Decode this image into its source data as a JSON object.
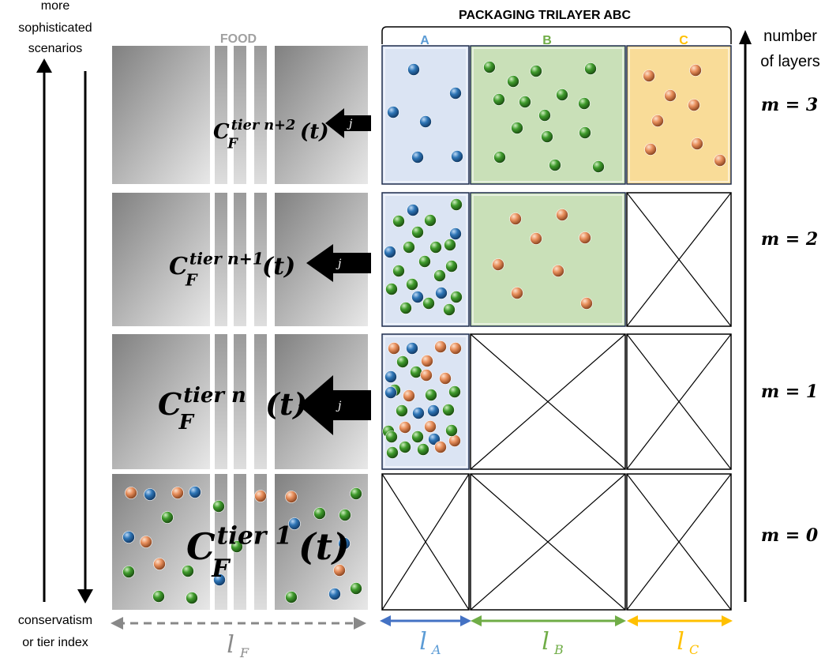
{
  "header": {
    "title": "PACKAGING TRILAYER ABC",
    "food_label": "FOOD",
    "layers": [
      {
        "label": "A",
        "color": "#5b9bd5"
      },
      {
        "label": "B",
        "color": "#70ad47"
      },
      {
        "label": "C",
        "color": "#ffc000"
      }
    ]
  },
  "left_axis": {
    "top_label": [
      "more",
      "sophisticated",
      "scenarios"
    ],
    "bottom_label": [
      "conservatism",
      "or tier index"
    ]
  },
  "right_axis": {
    "label": [
      "number",
      "of layers"
    ]
  },
  "rows": [
    {
      "m": "m = 3",
      "tier": "tier n+2",
      "flux": "j"
    },
    {
      "m": "m = 2",
      "tier": "tier n+1",
      "flux": "j"
    },
    {
      "m": "m = 1",
      "tier": "tier n",
      "flux": "j"
    },
    {
      "m": "m = 0",
      "tier": "tier 1",
      "flux": ""
    }
  ],
  "conc_symbol": {
    "base": "C",
    "sub": "F",
    "arg": "(t)"
  },
  "lengths": {
    "food": "l",
    "food_sub": "F",
    "a": "l",
    "a_sub": "A",
    "b": "l",
    "b_sub": "B",
    "c": "l",
    "c_sub": "C"
  },
  "colors": {
    "layer_a_fill": "#dbe4f3",
    "layer_b_fill": "#c9e0b8",
    "layer_c_fill": "#f9dc98",
    "particle_blue": "#2e75b6",
    "particle_green": "#3f9b2c",
    "particle_orange": "#e88f5c"
  }
}
